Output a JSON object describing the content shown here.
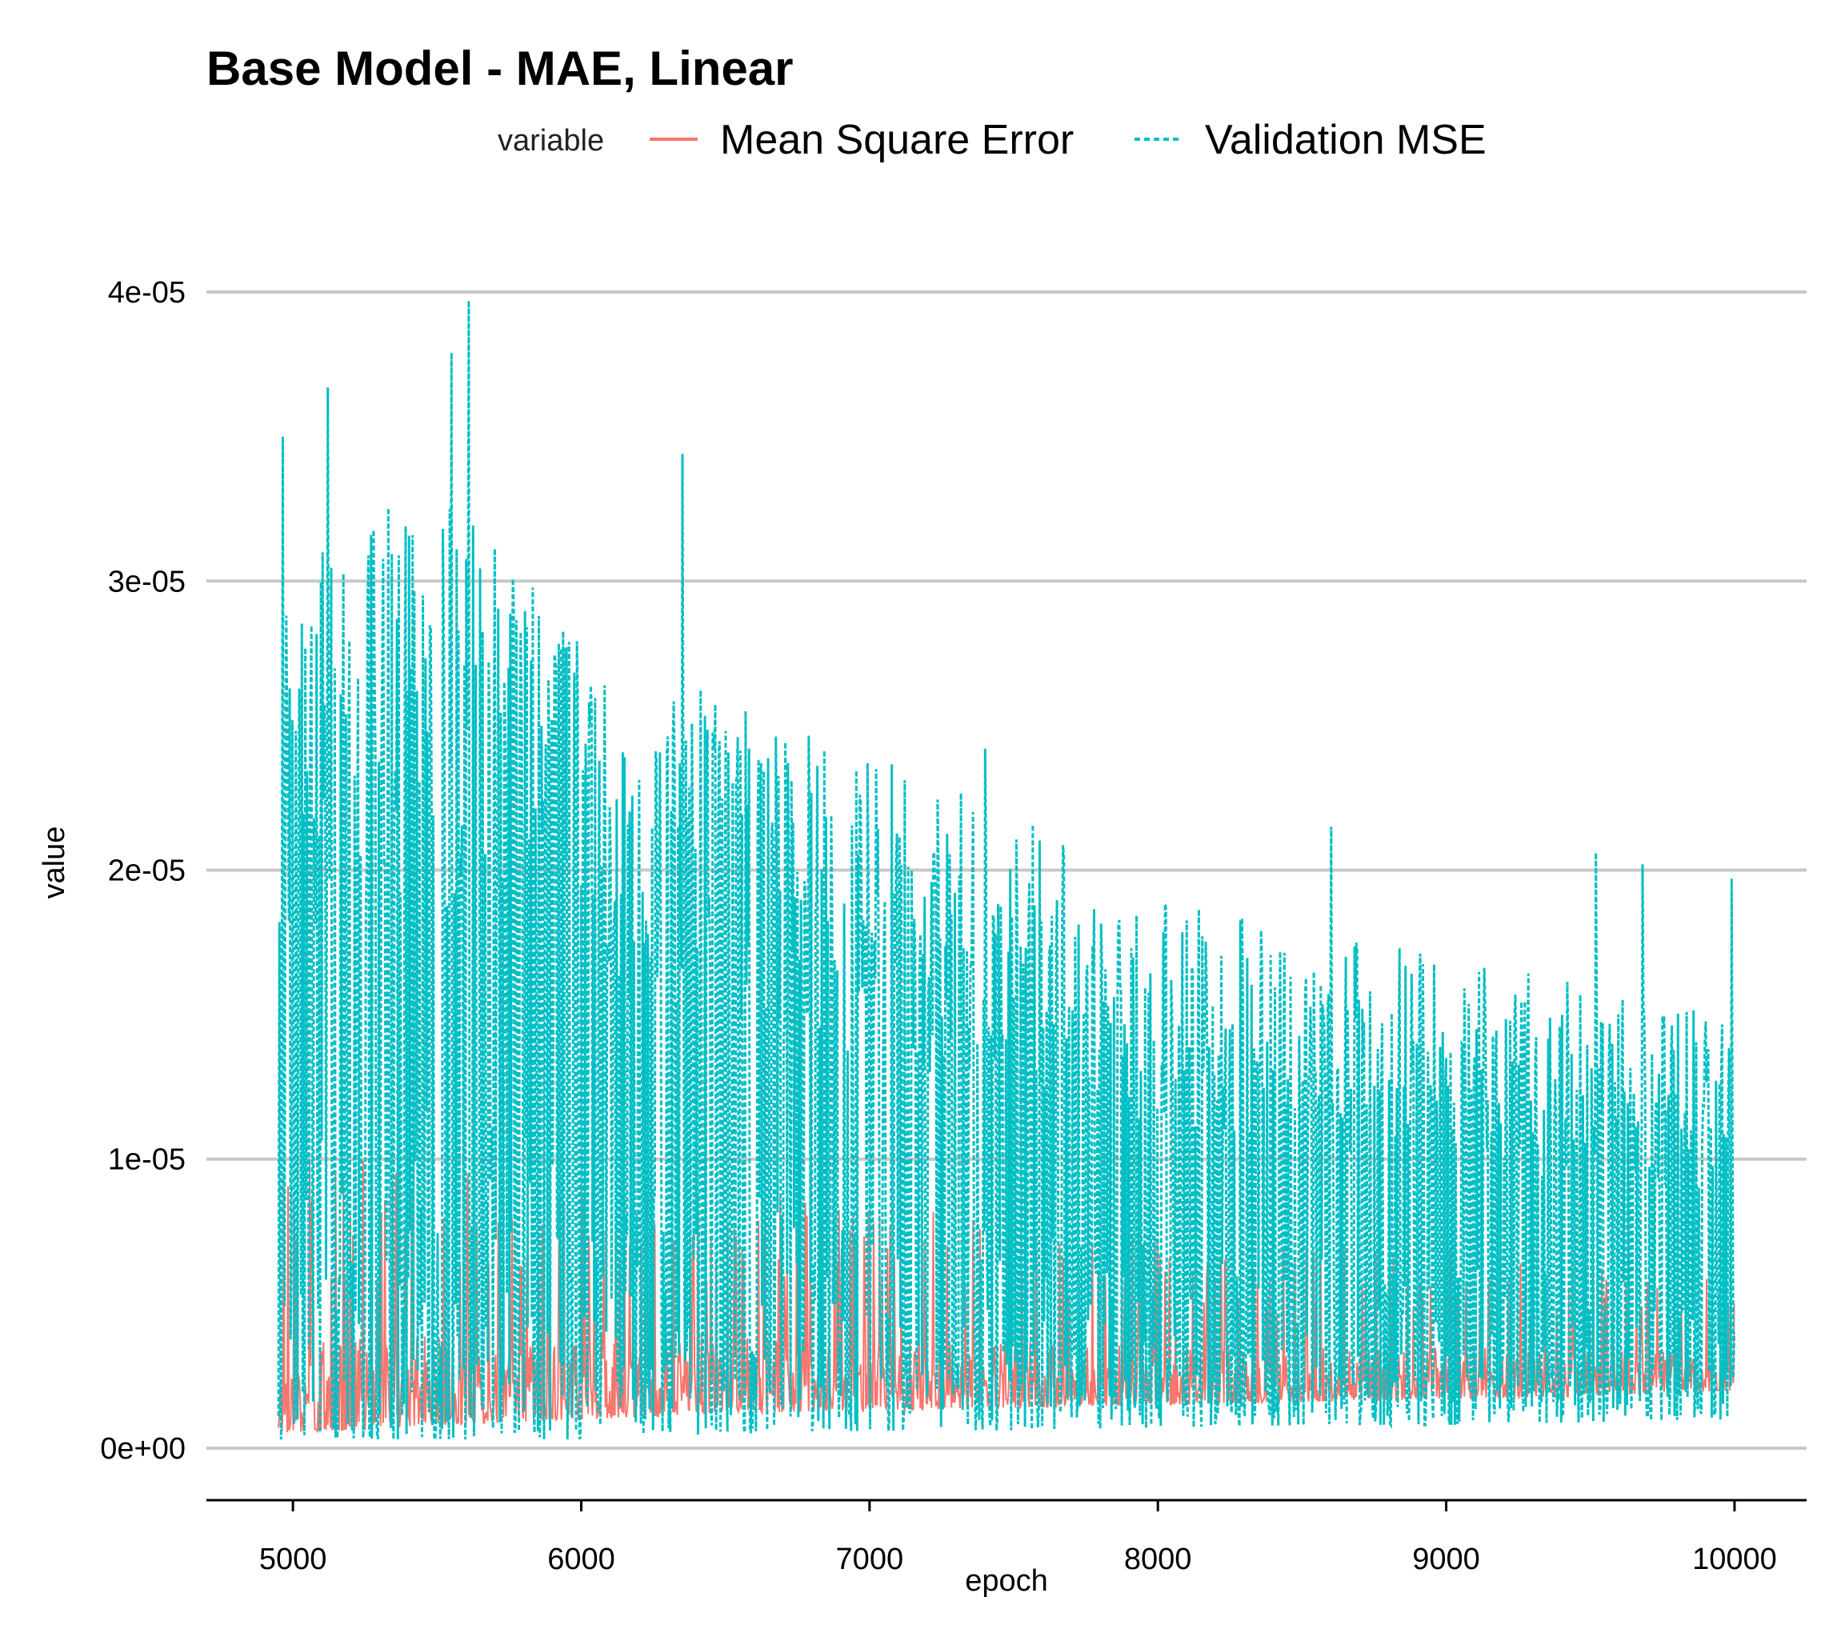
{
  "chart_data": {
    "type": "line",
    "title": "Base Model - MAE, Linear",
    "xlabel": "epoch",
    "ylabel": "value",
    "xlim": [
      4700,
      10250
    ],
    "ylim": [
      -1.8e-06,
      4.18e-05
    ],
    "x_ticks": [
      5000,
      6000,
      7000,
      8000,
      9000,
      10000
    ],
    "x_tick_labels": [
      "5000",
      "6000",
      "7000",
      "8000",
      "9000",
      "10000"
    ],
    "y_ticks": [
      0,
      1e-05,
      2e-05,
      3e-05,
      4e-05
    ],
    "y_tick_labels": [
      "0e+00",
      "1e-05",
      "2e-05",
      "3e-05",
      "4e-05"
    ],
    "grid": "horizontal-major",
    "legend": {
      "title": "variable",
      "placement": "top",
      "entries": [
        {
          "label": "Mean Square Error",
          "color": "#F8766D",
          "linetype": "solid"
        },
        {
          "label": "Validation MSE",
          "color": "#00BFC4",
          "linetype": "dashed"
        }
      ]
    },
    "series": [
      {
        "name": "Mean Square Error",
        "color": "#F8766D",
        "linetype": "solid",
        "x_range": [
          4950,
          10000
        ],
        "envelope_x": [
          4950,
          5500,
          6000,
          6500,
          7000,
          7500,
          8000,
          8500,
          9000,
          9500,
          10000
        ],
        "envelope_low": [
          5e-07,
          8e-07,
          1e-06,
          1.2e-06,
          1.3e-06,
          1.4e-06,
          1.5e-06,
          1.6e-06,
          1.7e-06,
          1.8e-06,
          2e-06
        ],
        "envelope_high": [
          1e-05,
          1e-05,
          9.5e-06,
          9e-06,
          8.5e-06,
          8e-06,
          7.5e-06,
          7e-06,
          6.8e-06,
          6.5e-06,
          6e-06
        ]
      },
      {
        "name": "Validation MSE",
        "color": "#00BFC4",
        "linetype": "dashed",
        "x_range": [
          4950,
          10000
        ],
        "envelope_x": [
          4950,
          5500,
          6000,
          6500,
          7000,
          7500,
          8000,
          8500,
          9000,
          9500,
          10000
        ],
        "envelope_low": [
          3e-07,
          3e-07,
          3e-07,
          5e-07,
          6e-07,
          6e-07,
          7e-07,
          8e-07,
          8e-07,
          9e-07,
          1e-06
        ],
        "envelope_high": [
          3.2e-05,
          3.3e-05,
          2.9e-05,
          2.6e-05,
          2.4e-05,
          2.2e-05,
          1.9e-05,
          1.8e-05,
          1.7e-05,
          1.6e-05,
          1.5e-05
        ],
        "peaks": [
          {
            "x": 4965,
            "y": 3.5e-05
          },
          {
            "x": 5120,
            "y": 3.67e-05
          },
          {
            "x": 5550,
            "y": 3.79e-05
          },
          {
            "x": 5610,
            "y": 3.97e-05
          },
          {
            "x": 6350,
            "y": 3.44e-05
          },
          {
            "x": 7400,
            "y": 2.42e-05
          },
          {
            "x": 8600,
            "y": 2.15e-05
          },
          {
            "x": 9520,
            "y": 2.06e-05
          },
          {
            "x": 9680,
            "y": 2.02e-05
          },
          {
            "x": 9990,
            "y": 1.97e-05
          }
        ]
      }
    ]
  }
}
